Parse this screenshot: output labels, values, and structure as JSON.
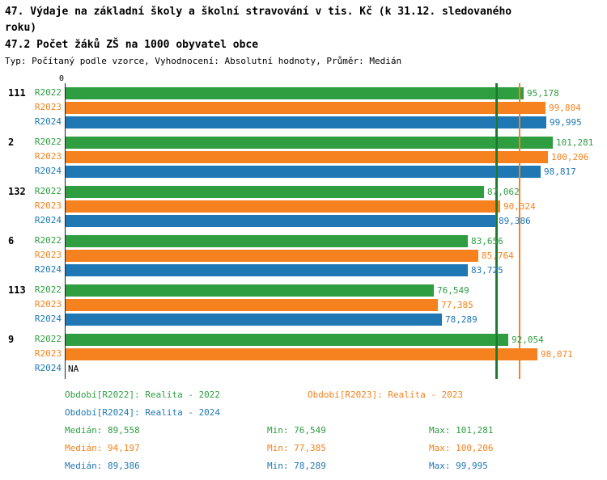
{
  "header": {
    "title": "47. Výdaje na základní školy a školní stravování v tis. Kč (k 31.12. sledovaného roku)",
    "subtitle": "47.2 Počet žáků ZŠ na 1000 obyvatel obce",
    "meta": "Typ: Počítaný podle vzorce, Vyhodnocení: Absolutní hodnoty, Průměr: Medián"
  },
  "chart_data": {
    "type": "bar",
    "orientation": "horizontal",
    "axis_zero_label": "0",
    "xmax": 101281,
    "series_names": [
      "R2022",
      "R2023",
      "R2024"
    ],
    "series_colors": [
      "#2e9e41",
      "#f5821f",
      "#1f77b4"
    ],
    "median_colors": [
      "#1c7a2c",
      "#f5821f",
      "#1f77b4"
    ],
    "medians": [
      89558,
      94197,
      89386
    ],
    "groups": [
      {
        "label": "111",
        "values": [
          95178,
          99804,
          99995
        ],
        "display": [
          "95,178",
          "99,804",
          "99,995"
        ]
      },
      {
        "label": "2",
        "values": [
          101281,
          100206,
          98817
        ],
        "display": [
          "101,281",
          "100,206",
          "98,817"
        ]
      },
      {
        "label": "132",
        "values": [
          87062,
          90324,
          89386
        ],
        "display": [
          "87,062",
          "90,324",
          "89,386"
        ]
      },
      {
        "label": "6",
        "values": [
          83656,
          85764,
          83725
        ],
        "display": [
          "83,656",
          "85,764",
          "83,725"
        ]
      },
      {
        "label": "113",
        "values": [
          76549,
          77385,
          78289
        ],
        "display": [
          "76,549",
          "77,385",
          "78,289"
        ]
      },
      {
        "label": "9",
        "values": [
          92054,
          98071,
          null
        ],
        "display": [
          "92,054",
          "98,071",
          "NA"
        ]
      }
    ]
  },
  "legend": [
    {
      "label": "Období[R2022]: Realita - 2022",
      "color": "#2e9e41"
    },
    {
      "label": "Období[R2023]: Realita - 2023",
      "color": "#f5821f"
    },
    {
      "label": "Období[R2024]: Realita - 2024",
      "color": "#1f77b4"
    }
  ],
  "stats": [
    {
      "median": "Medián: 89,558",
      "min": "Min: 76,549",
      "max": "Max: 101,281",
      "color": "#2e9e41"
    },
    {
      "median": "Medián: 94,197",
      "min": "Min: 77,385",
      "max": "Max: 100,206",
      "color": "#f5821f"
    },
    {
      "median": "Medián: 89,386",
      "min": "Min: 78,289",
      "max": "Max: 99,995",
      "color": "#1f77b4"
    }
  ]
}
